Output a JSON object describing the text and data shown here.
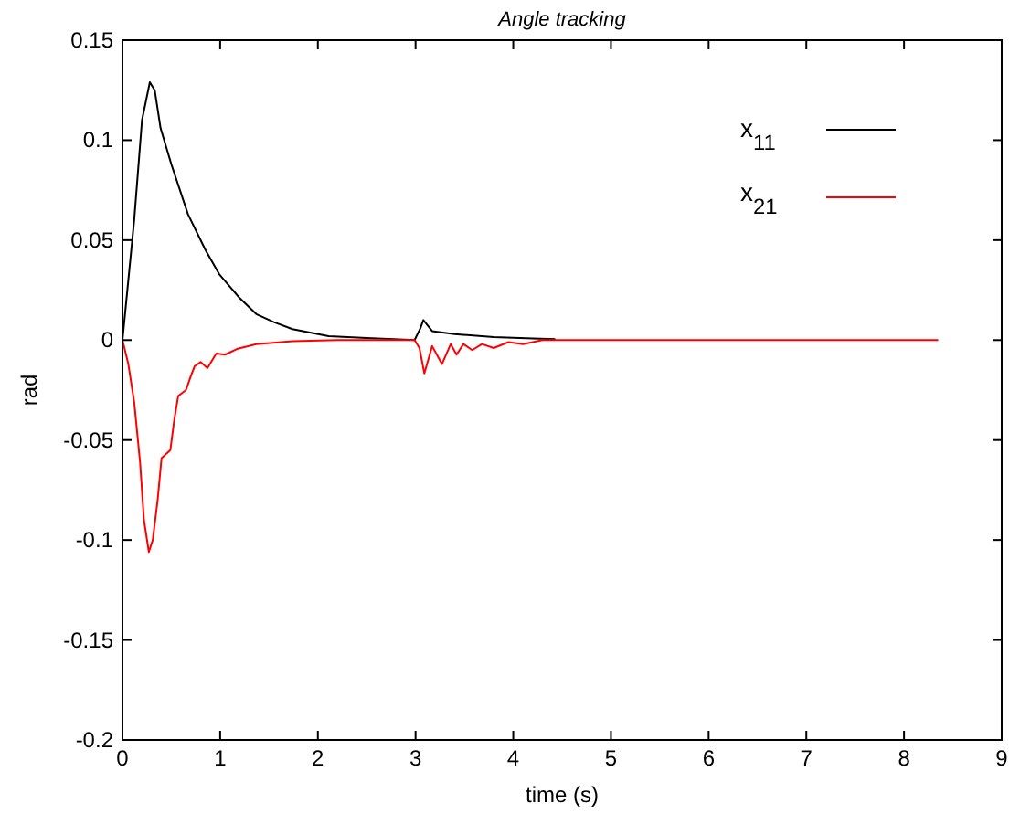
{
  "chart_data": {
    "type": "line",
    "title": "Angle tracking",
    "xlabel": "time (s)",
    "ylabel": "rad",
    "xlim": [
      0,
      9
    ],
    "ylim": [
      -0.2,
      0.15
    ],
    "xticks": [
      0,
      1,
      2,
      3,
      4,
      5,
      6,
      7,
      8,
      9
    ],
    "yticks": [
      -0.2,
      -0.15,
      -0.1,
      -0.05,
      0,
      0.05,
      0.1,
      0.15
    ],
    "grid": false,
    "legend": "top right",
    "marker": "none",
    "line_style": "solid",
    "series": [
      {
        "name": "x$_{11}$",
        "color": "#000000",
        "x": [
          0,
          0.12,
          0.2,
          0.28,
          0.33,
          0.39,
          0.5,
          0.67,
          0.85,
          0.99,
          1.2,
          1.37,
          1.55,
          1.74,
          2.11,
          2.5,
          2.99,
          3.05,
          3.08,
          3.17,
          3.4,
          3.8,
          4.2,
          4.43
        ],
        "values": [
          0,
          0.06,
          0.11,
          0.129,
          0.125,
          0.106,
          0.088,
          0.063,
          0.045,
          0.033,
          0.021,
          0.013,
          0.009,
          0.0055,
          0.002,
          0.001,
          0,
          0.006,
          0.01,
          0.0045,
          0.003,
          0.0015,
          0.0008,
          0.0005
        ]
      },
      {
        "name": "x$_{21}$",
        "color": "#ff0000",
        "x": [
          0,
          0.06,
          0.12,
          0.18,
          0.22,
          0.27,
          0.31,
          0.36,
          0.4,
          0.49,
          0.53,
          0.57,
          0.65,
          0.7,
          0.74,
          0.8,
          0.87,
          0.96,
          1.05,
          1.18,
          1.37,
          1.74,
          2.2,
          2.99,
          3.04,
          3.09,
          3.17,
          3.27,
          3.36,
          3.42,
          3.49,
          3.58,
          3.68,
          3.8,
          3.95,
          4.1,
          4.3,
          5,
          8.35
        ],
        "values": [
          0,
          -0.012,
          -0.031,
          -0.061,
          -0.09,
          -0.106,
          -0.1,
          -0.08,
          -0.059,
          -0.055,
          -0.04,
          -0.028,
          -0.025,
          -0.018,
          -0.013,
          -0.011,
          -0.014,
          -0.0067,
          -0.0073,
          -0.0043,
          -0.002,
          -0.0006,
          0,
          0,
          -0.004,
          -0.0167,
          -0.003,
          -0.012,
          -0.002,
          -0.0073,
          -0.002,
          -0.005,
          -0.002,
          -0.004,
          -0.001,
          -0.002,
          0,
          0,
          0
        ]
      }
    ]
  }
}
